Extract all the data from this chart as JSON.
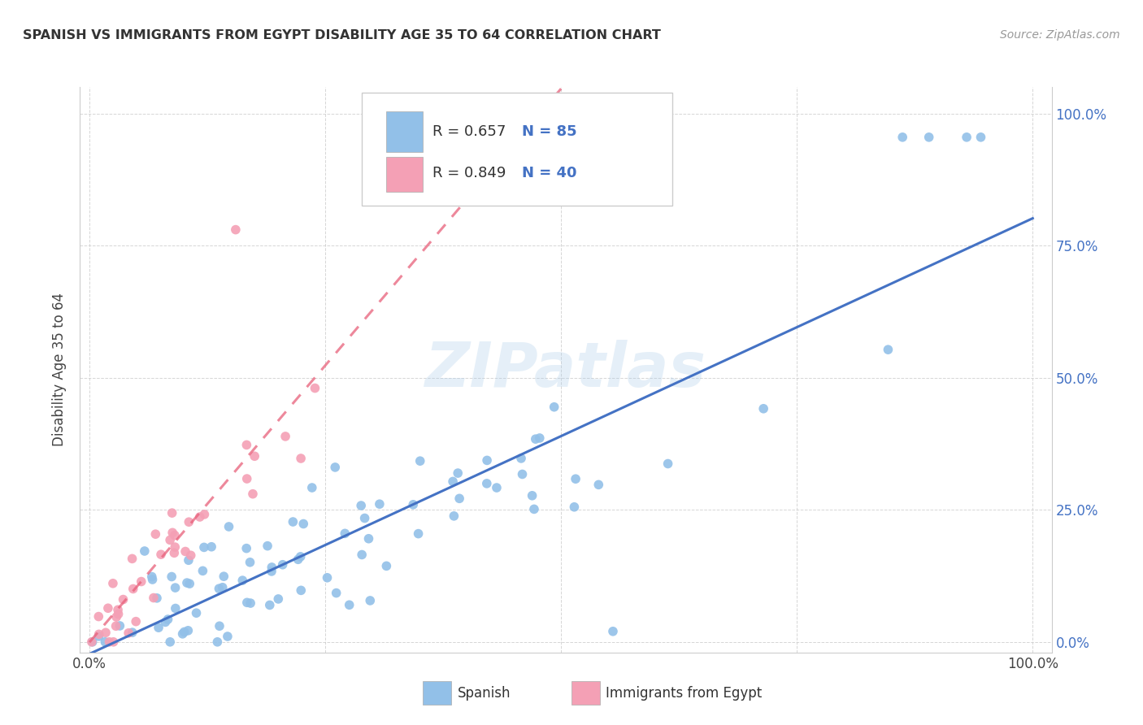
{
  "title": "SPANISH VS IMMIGRANTS FROM EGYPT DISABILITY AGE 35 TO 64 CORRELATION CHART",
  "source": "Source: ZipAtlas.com",
  "ylabel": "Disability Age 35 to 64",
  "R_spanish": 0.657,
  "N_spanish": 85,
  "R_egypt": 0.849,
  "N_egypt": 40,
  "watermark": "ZIPatlas",
  "blue_color": "#92C0E8",
  "pink_color": "#F4A0B5",
  "blue_line_color": "#4472C4",
  "pink_line_color": "#E8607A",
  "axis_color": "#4472C4",
  "grid_color": "#CCCCCC",
  "title_color": "#333333",
  "source_color": "#999999"
}
